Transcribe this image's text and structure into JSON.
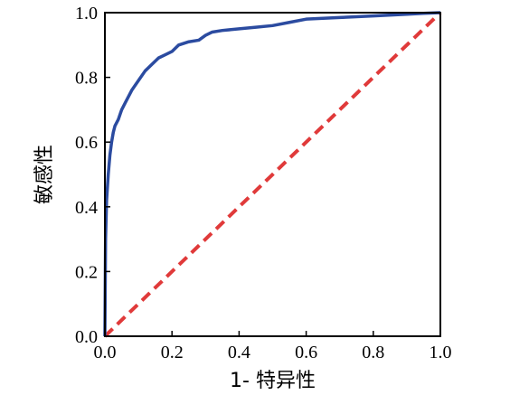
{
  "chart_data": {
    "type": "line",
    "title": "",
    "xlabel": "1- 特异性",
    "ylabel": "敏感性",
    "xlim": [
      0.0,
      1.0
    ],
    "ylim": [
      0.0,
      1.0
    ],
    "x_ticks": [
      0.0,
      0.2,
      0.4,
      0.6,
      0.8,
      1.0
    ],
    "y_ticks": [
      0.0,
      0.2,
      0.4,
      0.6,
      0.8,
      1.0
    ],
    "x_tick_labels": [
      "0.0",
      "0.2",
      "0.4",
      "0.6",
      "0.8",
      "1.0"
    ],
    "y_tick_labels": [
      "0.0",
      "0.2",
      "0.4",
      "0.6",
      "0.8",
      "1.0"
    ],
    "grid": false,
    "legend": "none",
    "series": [
      {
        "style": "solid",
        "color": "#2b4ba0",
        "x": [
          0.0,
          0.002,
          0.005,
          0.01,
          0.015,
          0.02,
          0.025,
          0.03,
          0.04,
          0.05,
          0.06,
          0.08,
          0.1,
          0.12,
          0.14,
          0.16,
          0.18,
          0.2,
          0.22,
          0.25,
          0.28,
          0.3,
          0.32,
          0.35,
          0.4,
          0.45,
          0.5,
          0.55,
          0.6,
          0.7,
          0.8,
          0.9,
          0.95,
          1.0
        ],
        "y": [
          0.0,
          0.3,
          0.42,
          0.5,
          0.56,
          0.6,
          0.63,
          0.65,
          0.67,
          0.7,
          0.72,
          0.76,
          0.79,
          0.82,
          0.84,
          0.86,
          0.87,
          0.88,
          0.9,
          0.91,
          0.915,
          0.93,
          0.94,
          0.945,
          0.95,
          0.955,
          0.96,
          0.97,
          0.98,
          0.985,
          0.99,
          0.995,
          0.998,
          1.0
        ]
      },
      {
        "style": "dashed",
        "color": "#e03a3a",
        "x": [
          0.0,
          1.0
        ],
        "y": [
          0.0,
          1.0
        ]
      }
    ]
  }
}
